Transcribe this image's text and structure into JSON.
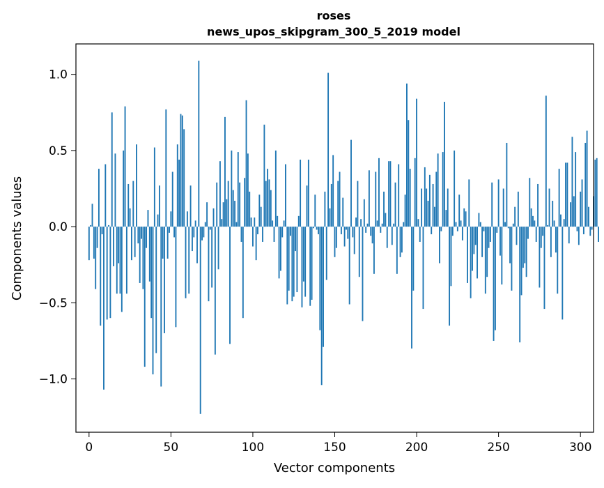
{
  "chart_data": {
    "type": "bar",
    "title": "roses",
    "subtitle": "news_upos_skipgram_300_5_2019 model",
    "xlabel": "Vector components",
    "ylabel": "Components values",
    "xlim": [
      -8,
      308
    ],
    "ylim": [
      -1.35,
      1.2
    ],
    "xticks": [
      0,
      50,
      100,
      150,
      200,
      250,
      300
    ],
    "yticks": [
      -1.0,
      -0.5,
      0.0,
      0.5,
      1.0
    ],
    "ytick_labels": [
      "−1.0",
      "−0.5",
      "0.0",
      "0.5",
      "1.0"
    ],
    "grid": false,
    "bar_color": "#1f77b4",
    "values": [
      -0.22,
      0.01,
      0.15,
      -0.21,
      -0.41,
      -0.14,
      0.38,
      -0.65,
      -0.05,
      -1.07,
      0.41,
      -0.61,
      0.01,
      -0.6,
      0.75,
      -0.26,
      0.48,
      -0.44,
      -0.24,
      -0.44,
      -0.56,
      0.5,
      0.79,
      -0.44,
      0.28,
      0.12,
      -0.22,
      0.3,
      -0.2,
      0.54,
      -0.11,
      -0.37,
      -0.08,
      -0.41,
      -0.92,
      -0.14,
      0.11,
      -0.36,
      -0.6,
      -0.97,
      0.52,
      -0.83,
      0.08,
      0.27,
      -1.05,
      -0.21,
      -0.7,
      0.77,
      -0.21,
      -0.04,
      0.1,
      0.36,
      -0.07,
      -0.66,
      0.54,
      0.44,
      0.74,
      0.73,
      0.64,
      -0.47,
      0.1,
      -0.44,
      0.27,
      -0.16,
      -0.07,
      0.04,
      -0.24,
      1.09,
      -1.23,
      -0.09,
      -0.07,
      0.03,
      0.16,
      -0.49,
      -0.02,
      -0.4,
      0.12,
      -0.84,
      0.29,
      -0.28,
      0.43,
      0.05,
      0.16,
      0.72,
      0.18,
      0.3,
      -0.77,
      0.5,
      0.24,
      0.17,
      0.03,
      0.49,
      0.29,
      -0.1,
      -0.6,
      0.32,
      0.83,
      0.48,
      0.23,
      0.06,
      -0.13,
      0.06,
      -0.22,
      -0.05,
      0.21,
      0.13,
      -0.1,
      0.67,
      0.3,
      0.38,
      0.31,
      0.24,
      0.04,
      -0.1,
      0.5,
      0.07,
      -0.34,
      -0.29,
      -0.07,
      0.04,
      0.41,
      -0.51,
      -0.42,
      -0.06,
      -0.49,
      -0.46,
      -0.16,
      -0.43,
      0.07,
      0.44,
      -0.53,
      -0.36,
      -0.46,
      0.27,
      0.44,
      -0.52,
      -0.48,
      -0.01,
      0.21,
      -0.02,
      -0.05,
      -0.68,
      -1.04,
      -0.79,
      0.23,
      -0.35,
      1.01,
      0.12,
      0.28,
      0.47,
      -0.2,
      -0.14,
      0.3,
      0.36,
      -0.05,
      0.19,
      -0.13,
      -0.02,
      -0.08,
      -0.51,
      0.57,
      -0.07,
      -0.18,
      0.06,
      0.3,
      -0.33,
      0.05,
      -0.62,
      0.18,
      -0.04,
      0.02,
      0.37,
      -0.06,
      -0.11,
      -0.31,
      0.36,
      0.04,
      0.45,
      -0.04,
      0.02,
      0.23,
      0.09,
      -0.14,
      0.43,
      0.43,
      -0.12,
      0.02,
      0.29,
      -0.31,
      0.41,
      -0.2,
      -0.17,
      0.03,
      0.21,
      0.94,
      0.7,
      0.38,
      -0.8,
      -0.42,
      0.45,
      0.84,
      0.05,
      -0.1,
      0.25,
      -0.54,
      0.39,
      0.25,
      0.17,
      0.34,
      -0.05,
      0.28,
      0.13,
      0.36,
      0.48,
      -0.24,
      -0.03,
      0.49,
      0.82,
      0.11,
      0.25,
      -0.65,
      -0.39,
      -0.06,
      0.5,
      0.03,
      -0.03,
      0.21,
      0.04,
      -0.09,
      0.12,
      0.1,
      -0.37,
      0.31,
      -0.47,
      -0.29,
      -0.18,
      -0.12,
      -0.34,
      0.09,
      0.03,
      -0.2,
      -0.03,
      -0.44,
      -0.33,
      -0.14,
      -0.1,
      0.29,
      -0.75,
      -0.68,
      -0.04,
      0.31,
      -0.19,
      -0.38,
      0.25,
      0.03,
      0.55,
      -0.01,
      -0.24,
      -0.42,
      0.02,
      0.13,
      -0.12,
      0.23,
      -0.76,
      -0.45,
      -0.27,
      -0.24,
      -0.33,
      -0.08,
      0.32,
      0.12,
      0.07,
      0.04,
      -0.1,
      0.28,
      -0.4,
      -0.14,
      -0.06,
      -0.54,
      0.86,
      0.01,
      0.25,
      -0.2,
      0.17,
      0.04,
      -0.17,
      -0.44,
      0.38,
      0.08,
      -0.61,
      0.05,
      0.42,
      0.42,
      -0.11,
      0.16,
      0.59,
      0.2,
      0.49,
      -0.03,
      -0.12,
      0.23,
      0.31,
      -0.05,
      0.55,
      0.63,
      0.13,
      -0.06,
      -0.02,
      0.2,
      0.44,
      0.45,
      -0.1
    ]
  }
}
